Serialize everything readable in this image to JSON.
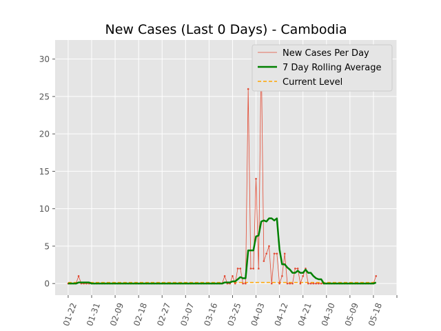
{
  "chart_data": {
    "type": "line",
    "title": "New Cases (Last 0 Days) - Cambodia",
    "xlabel": "",
    "ylabel": "",
    "x_start": "01-22",
    "x_end": "05-19",
    "xlim": [
      "01-17",
      "05-27"
    ],
    "ylim": [
      -1.55,
      32.55
    ],
    "grid": true,
    "legend_position": "top-right",
    "x_tick_labels": [
      "01-22",
      "01-31",
      "02-09",
      "02-18",
      "02-27",
      "03-07",
      "03-16",
      "03-25",
      "04-03",
      "04-12",
      "04-21",
      "04-30",
      "05-09",
      "05-18"
    ],
    "y_ticks": [
      0,
      5,
      10,
      15,
      20,
      25,
      30
    ],
    "x": [
      "01-22",
      "01-23",
      "01-24",
      "01-25",
      "01-26",
      "01-27",
      "01-28",
      "01-29",
      "01-30",
      "01-31",
      "02-01",
      "02-02",
      "02-03",
      "02-04",
      "02-05",
      "02-06",
      "02-07",
      "02-08",
      "02-09",
      "02-10",
      "02-11",
      "02-12",
      "02-13",
      "02-14",
      "02-15",
      "02-16",
      "02-17",
      "02-18",
      "02-19",
      "02-20",
      "02-21",
      "02-22",
      "02-23",
      "02-24",
      "02-25",
      "02-26",
      "02-27",
      "02-28",
      "02-29",
      "03-01",
      "03-02",
      "03-03",
      "03-04",
      "03-05",
      "03-06",
      "03-07",
      "03-08",
      "03-09",
      "03-10",
      "03-11",
      "03-12",
      "03-13",
      "03-14",
      "03-15",
      "03-16",
      "03-17",
      "03-18",
      "03-19",
      "03-20",
      "03-21",
      "03-22",
      "03-23",
      "03-24",
      "03-25",
      "03-26",
      "03-27",
      "03-28",
      "03-29",
      "03-30",
      "03-31",
      "04-01",
      "04-02",
      "04-03",
      "04-04",
      "04-05",
      "04-06",
      "04-07",
      "04-08",
      "04-09",
      "04-10",
      "04-11",
      "04-12",
      "04-13",
      "04-14",
      "04-15",
      "04-16",
      "04-17",
      "04-18",
      "04-19",
      "04-20",
      "04-21",
      "04-22",
      "04-23",
      "04-24",
      "04-25",
      "04-26",
      "04-27",
      "04-28",
      "04-29",
      "04-30",
      "05-01",
      "05-02",
      "05-03",
      "05-04",
      "05-05",
      "05-06",
      "05-07",
      "05-08",
      "05-09",
      "05-10",
      "05-11",
      "05-12",
      "05-13",
      "05-14",
      "05-15",
      "05-16",
      "05-17",
      "05-18",
      "05-19"
    ],
    "series": [
      {
        "name": "New Cases Per Day",
        "color": "#e24a33",
        "values": [
          0,
          0,
          0,
          0,
          1,
          0,
          0,
          0,
          0,
          0,
          0,
          0,
          0,
          0,
          0,
          0,
          0,
          0,
          0,
          0,
          0,
          0,
          0,
          0,
          0,
          0,
          0,
          0,
          0,
          0,
          0,
          0,
          0,
          0,
          0,
          0,
          0,
          0,
          0,
          0,
          0,
          0,
          0,
          0,
          0,
          0,
          0,
          0,
          0,
          0,
          0,
          0,
          0,
          0,
          0,
          0,
          0,
          0,
          0,
          0,
          1,
          0,
          0,
          1,
          0,
          2,
          2,
          0,
          0,
          26,
          2,
          2,
          14,
          2,
          31,
          3,
          4,
          5,
          0,
          4,
          4,
          0,
          1,
          4,
          0,
          0,
          0,
          2,
          2,
          0,
          1,
          2,
          0,
          0,
          0,
          0,
          0,
          0,
          0,
          0,
          0,
          0,
          0,
          0,
          0,
          0,
          0,
          0,
          0,
          0,
          0,
          0,
          0,
          0,
          0,
          0,
          0,
          0,
          1
        ]
      },
      {
        "name": "7 Day Rolling Average",
        "color": "#008000",
        "values": [
          0,
          0,
          0,
          0,
          0.14,
          0.14,
          0.14,
          0.14,
          0.14,
          0,
          0,
          0,
          0,
          0,
          0,
          0,
          0,
          0,
          0,
          0,
          0,
          0,
          0,
          0,
          0,
          0,
          0,
          0,
          0,
          0,
          0,
          0,
          0,
          0,
          0,
          0,
          0,
          0,
          0,
          0,
          0,
          0,
          0,
          0,
          0,
          0,
          0,
          0,
          0,
          0,
          0,
          0,
          0,
          0,
          0,
          0,
          0,
          0,
          0,
          0,
          0.14,
          0.14,
          0.14,
          0.29,
          0.29,
          0.57,
          0.86,
          0.71,
          0.71,
          4.43,
          4.43,
          4.43,
          6.29,
          6.43,
          8.29,
          8.43,
          8.29,
          8.71,
          8.71,
          8.43,
          8.71,
          4.57,
          2.57,
          2.57,
          2.14,
          1.86,
          1.43,
          1.43,
          1.71,
          1.43,
          1.43,
          1.86,
          1.43,
          1.43,
          1,
          0.71,
          0.57,
          0.57,
          0,
          0,
          0,
          0,
          0,
          0,
          0,
          0,
          0,
          0,
          0,
          0,
          0,
          0,
          0,
          0,
          0,
          0,
          0,
          0,
          0.14
        ]
      },
      {
        "name": "Current Level",
        "color": "#ffa500",
        "constant": 0.14
      }
    ]
  }
}
